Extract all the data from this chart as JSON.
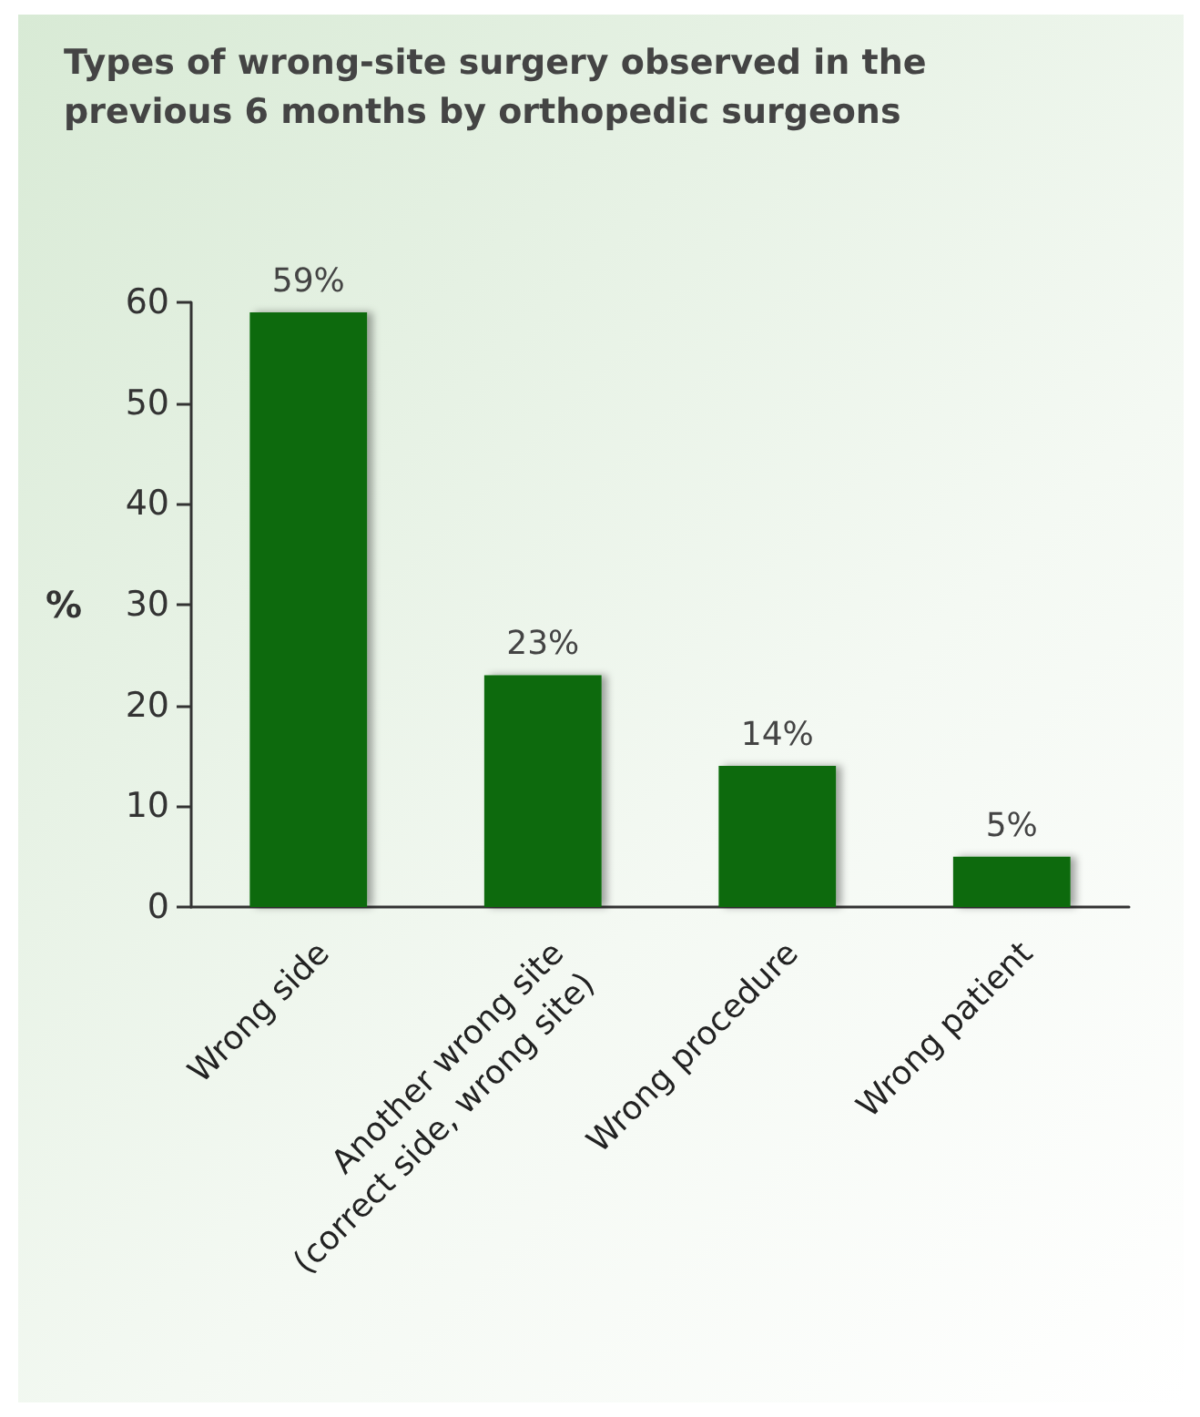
{
  "chart_data": {
    "type": "bar",
    "title": "Types of wrong-site surgery observed in the previous 6 months by orthopedic surgeons",
    "ylabel": "%",
    "categories": [
      "Wrong side",
      "Another wrong site\n(correct side, wrong site)",
      "Wrong procedure",
      "Wrong patient"
    ],
    "values": [
      59,
      23,
      14,
      5
    ],
    "value_labels": [
      "59%",
      "23%",
      "14%",
      "5%"
    ],
    "color": "#0b6b0b",
    "ylim": [
      0,
      60
    ],
    "yticks": [
      0,
      10,
      20,
      30,
      40,
      50,
      60
    ],
    "grid": false
  }
}
